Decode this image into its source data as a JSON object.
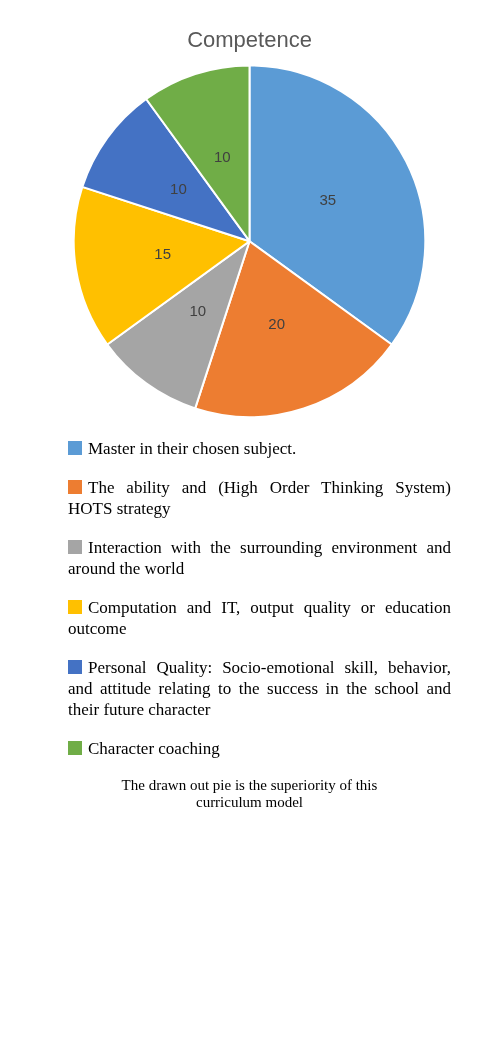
{
  "chart_data": {
    "type": "pie",
    "title": "Competence",
    "categories": [
      "Master in their chosen subject.",
      "The ability and (High Order Thinking System) HOTS strategy",
      "Interaction with the surrounding environment and around the world",
      "Computation and IT, output quality or education outcome",
      "Personal Quality: Socio-emotional skill, behavior, and attitude relating to the success in the school and their future character",
      "Character coaching"
    ],
    "values": [
      35,
      20,
      10,
      15,
      10,
      10
    ],
    "colors": [
      "#5b9bd5",
      "#ed7d31",
      "#a5a5a5",
      "#ffc000",
      "#4472c4",
      "#70ad47"
    ],
    "data_labels": true,
    "legend": "bottom",
    "annotations": [
      "The drawn out pie is the superiority of this curriculum model"
    ]
  }
}
